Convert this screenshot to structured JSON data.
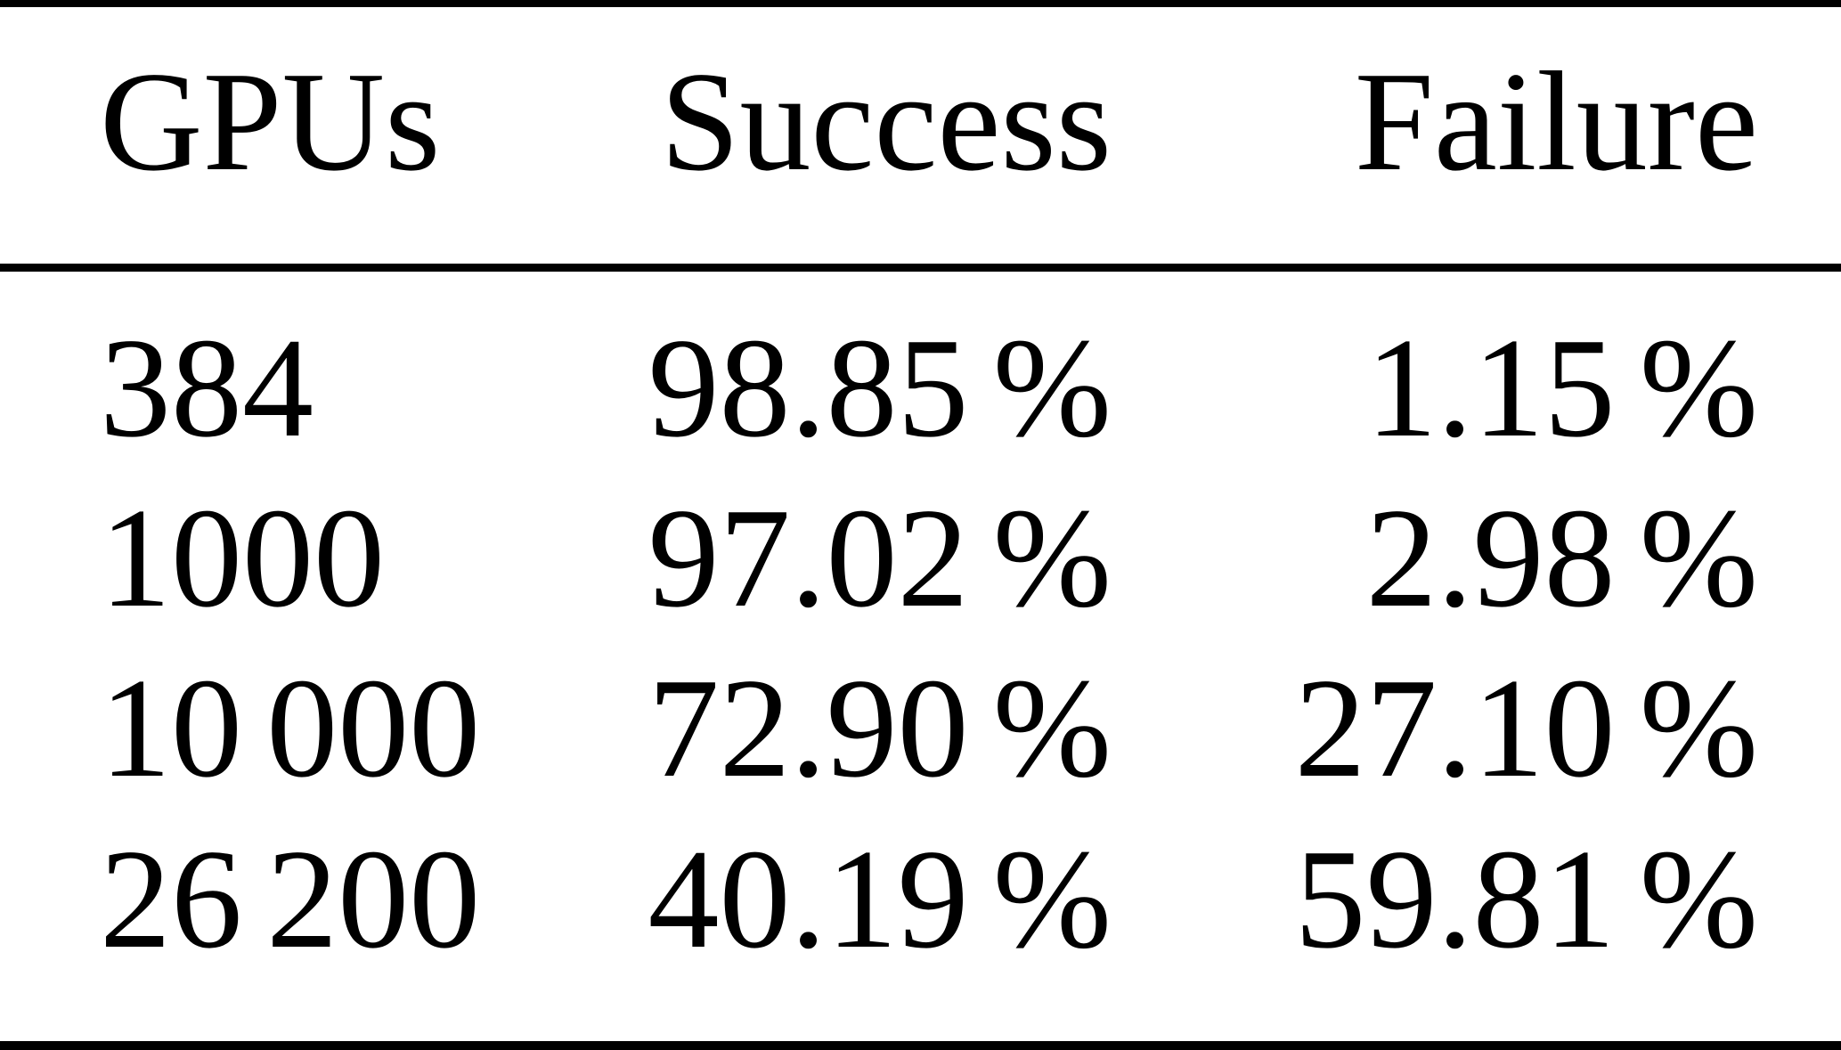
{
  "page": {
    "background_color": "#ffffff",
    "text_color": "#000000",
    "rule_color": "#000000"
  },
  "table": {
    "columns": [
      {
        "key": "gpus",
        "label": "GPUs"
      },
      {
        "key": "success",
        "label": "Success"
      },
      {
        "key": "failure",
        "label": "Failure"
      }
    ],
    "rows": [
      {
        "gpus": "384",
        "success": "98.85 %",
        "failure": "1.15 %"
      },
      {
        "gpus": "1000",
        "success": "97.02 %",
        "failure": "2.98 %"
      },
      {
        "gpus": "10 000",
        "success": "72.90 %",
        "failure": "27.10 %"
      },
      {
        "gpus": "26 200",
        "success": "40.19 %",
        "failure": "59.81 %"
      }
    ]
  }
}
